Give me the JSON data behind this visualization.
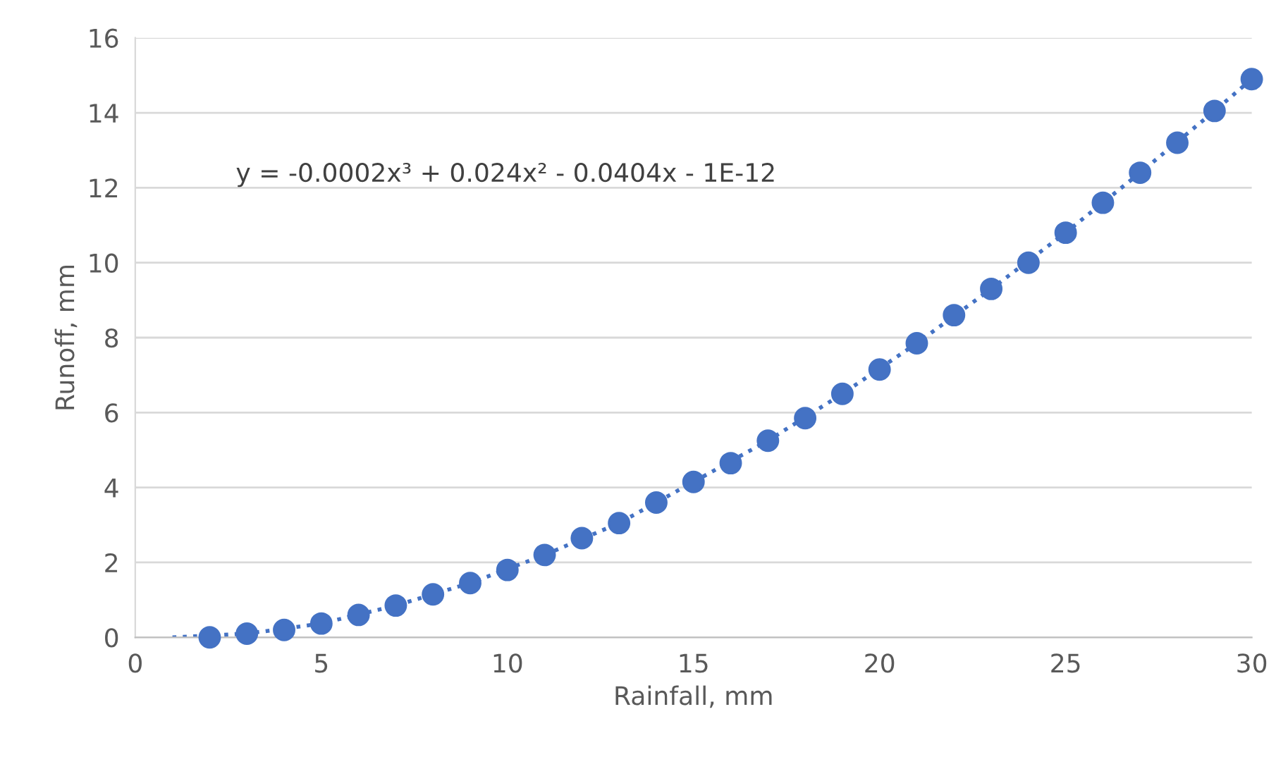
{
  "chart_data": {
    "type": "scatter",
    "xlabel": "Rainfall, mm",
    "ylabel": "Runoff, mm",
    "annotations": [
      "y = -0.0002x³ + 0.024x² - 0.0404x - 1E-12"
    ],
    "xlim": [
      0,
      30
    ],
    "xticks": [
      0,
      5,
      10,
      15,
      20,
      25,
      30
    ],
    "ylim": [
      0,
      16
    ],
    "yticks": [
      0,
      2,
      4,
      6,
      8,
      10,
      12,
      14,
      16
    ],
    "grid": "y",
    "legend": false,
    "marker": "circle",
    "series": [
      {
        "color": "#4472c4",
        "x": [
          2,
          3,
          4,
          5,
          6,
          7,
          8,
          9,
          10,
          11,
          12,
          13,
          14,
          15,
          16,
          17,
          18,
          19,
          20,
          21,
          22,
          23,
          24,
          25,
          26,
          27,
          28,
          29,
          30
        ],
        "values": [
          0.0,
          0.1,
          0.2,
          0.37,
          0.6,
          0.85,
          1.15,
          1.45,
          1.8,
          2.2,
          2.65,
          3.05,
          3.6,
          4.15,
          4.65,
          5.25,
          5.85,
          6.5,
          7.15,
          7.85,
          8.6,
          9.3,
          10.0,
          10.8,
          11.6,
          12.4,
          13.2,
          14.05,
          14.9
        ]
      },
      {
        "type": "line",
        "color": "#4472c4",
        "line_style": "dotted",
        "marker": "none",
        "x": [
          1,
          3,
          5,
          7,
          9,
          11,
          13,
          15,
          17,
          19,
          21,
          23,
          25,
          27,
          29,
          30
        ],
        "values": [
          0.0,
          0.1,
          0.37,
          0.85,
          1.45,
          2.2,
          3.05,
          4.15,
          5.25,
          6.5,
          7.85,
          9.3,
          10.8,
          12.4,
          14.05,
          14.9
        ]
      }
    ]
  }
}
